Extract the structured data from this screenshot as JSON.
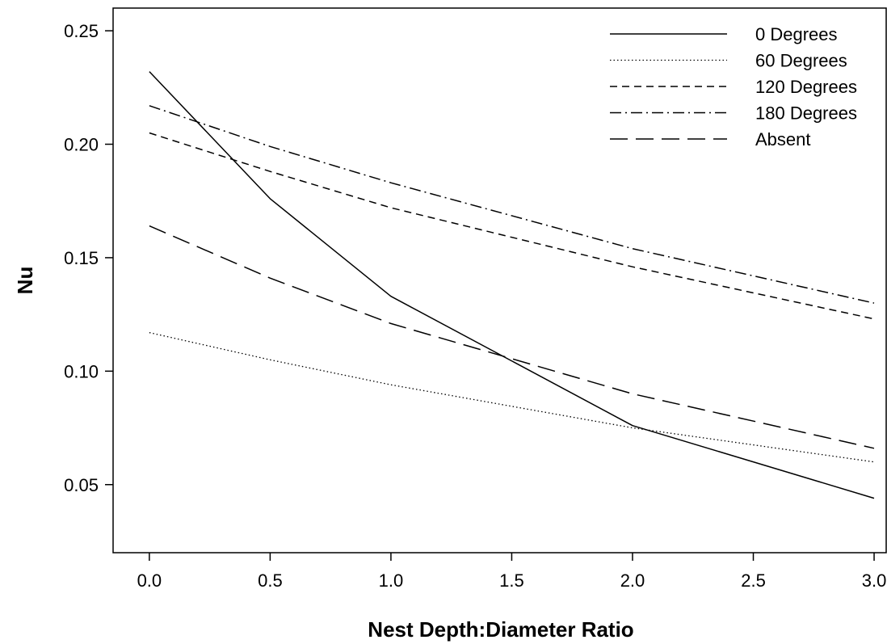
{
  "chart_data": {
    "type": "line",
    "title": "",
    "xlabel": "Nest Depth:Diameter Ratio",
    "ylabel": "Nu",
    "xlim": [
      -0.15,
      3.05
    ],
    "ylim": [
      0.02,
      0.26
    ],
    "xticks": [
      0.0,
      0.5,
      1.0,
      1.5,
      2.0,
      2.5,
      3.0
    ],
    "xtick_labels": [
      "0.0",
      "0.5",
      "1.0",
      "1.5",
      "2.0",
      "2.5",
      "3.0"
    ],
    "yticks": [
      0.05,
      0.1,
      0.15,
      0.2,
      0.25
    ],
    "ytick_labels": [
      "0.05",
      "0.10",
      "0.15",
      "0.20",
      "0.25"
    ],
    "grid": false,
    "legend_position": "top-right",
    "series": [
      {
        "name": "0 Degrees",
        "style": "solid",
        "x": [
          0.0,
          0.5,
          1.0,
          2.0,
          3.0
        ],
        "y": [
          0.232,
          0.176,
          0.133,
          0.076,
          0.044
        ]
      },
      {
        "name": "60 Degrees",
        "style": "dotted",
        "x": [
          0.0,
          0.5,
          1.0,
          2.0,
          3.0
        ],
        "y": [
          0.117,
          0.105,
          0.094,
          0.075,
          0.06
        ]
      },
      {
        "name": "120 Degrees",
        "style": "short-dash",
        "x": [
          0.0,
          0.5,
          1.0,
          2.0,
          3.0
        ],
        "y": [
          0.205,
          0.188,
          0.172,
          0.146,
          0.123
        ]
      },
      {
        "name": "180 Degrees",
        "style": "dash-dot",
        "x": [
          0.0,
          0.5,
          1.0,
          2.0,
          3.0
        ],
        "y": [
          0.217,
          0.199,
          0.183,
          0.154,
          0.13
        ]
      },
      {
        "name": "Absent",
        "style": "long-dash",
        "x": [
          0.0,
          0.5,
          1.0,
          2.0,
          3.0
        ],
        "y": [
          0.164,
          0.141,
          0.121,
          0.09,
          0.066
        ]
      }
    ],
    "line_color": "#000000"
  }
}
